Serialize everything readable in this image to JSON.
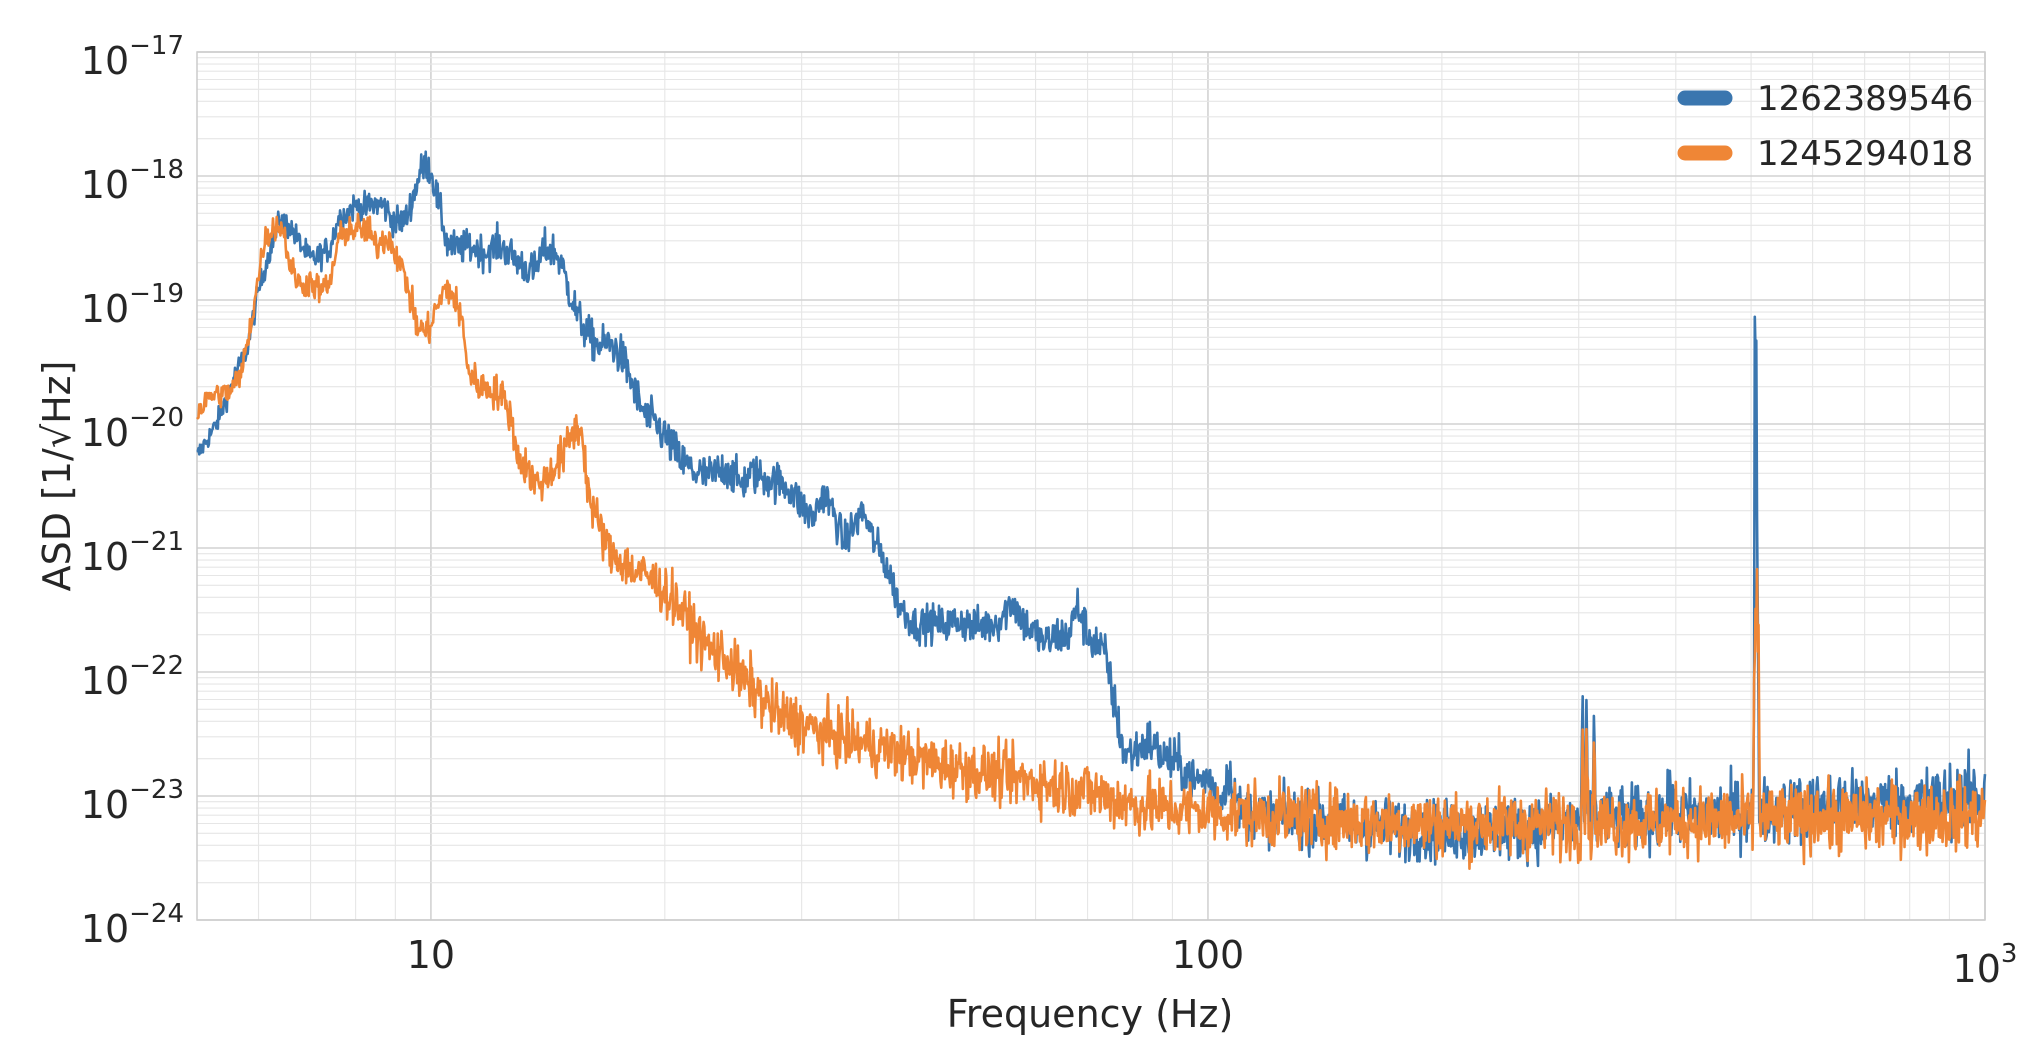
{
  "chart_data": {
    "type": "line",
    "title": "",
    "xlabel": "Frequency (Hz)",
    "ylabel": "ASD  [1/√Hz]",
    "xscale": "log",
    "yscale": "log",
    "xlim": [
      5,
      1000
    ],
    "ylim": [
      1e-24,
      1e-17
    ],
    "grid": true,
    "legend_position": "top-right",
    "x_ticks": [
      {
        "value": 10,
        "base": "10",
        "exp": ""
      },
      {
        "value": 100,
        "base": "100",
        "exp": ""
      },
      {
        "value": 1000,
        "base": "10",
        "exp": "3"
      }
    ],
    "y_ticks": [
      {
        "value": 1e-17,
        "base": "10",
        "exp": "−17"
      },
      {
        "value": 1e-18,
        "base": "10",
        "exp": "−18"
      },
      {
        "value": 1e-19,
        "base": "10",
        "exp": "−19"
      },
      {
        "value": 1e-20,
        "base": "10",
        "exp": "−20"
      },
      {
        "value": 1e-21,
        "base": "10",
        "exp": "−21"
      },
      {
        "value": 1e-22,
        "base": "10",
        "exp": "−22"
      },
      {
        "value": 1e-23,
        "base": "10",
        "exp": "−23"
      },
      {
        "value": 1e-24,
        "base": "10",
        "exp": "−24"
      }
    ],
    "series": [
      {
        "name": "1262389546",
        "color": "#3a76af",
        "noise": [
          [
            5,
            0.06
          ],
          [
            12,
            0.1
          ],
          [
            20,
            0.12
          ],
          [
            40,
            0.1
          ],
          [
            80,
            0.13
          ],
          [
            105,
            0.14
          ],
          [
            150,
            0.17
          ],
          [
            1000,
            0.2
          ]
        ],
        "points": [
          [
            5,
            5.5e-21
          ],
          [
            5.3,
            1e-20
          ],
          [
            5.6,
            2.5e-20
          ],
          [
            5.8,
            4e-20
          ],
          [
            6.0,
            1.2e-19
          ],
          [
            6.2,
            2.5e-19
          ],
          [
            6.4,
            4.5e-19
          ],
          [
            6.6,
            3.8e-19
          ],
          [
            6.8,
            2.8e-19
          ],
          [
            7.0,
            2.1e-19
          ],
          [
            7.2,
            2.3e-19
          ],
          [
            7.4,
            2.6e-19
          ],
          [
            7.6,
            4.5e-19
          ],
          [
            7.8,
            5e-19
          ],
          [
            8.0,
            5.8e-19
          ],
          [
            8.2,
            5.4e-19
          ],
          [
            8.4,
            5.9e-19
          ],
          [
            8.7,
            5.8e-19
          ],
          [
            8.9,
            4.5e-19
          ],
          [
            9.1,
            4.2e-19
          ],
          [
            9.3,
            4.6e-19
          ],
          [
            9.5,
            7e-19
          ],
          [
            9.7,
            1.1e-18
          ],
          [
            9.85,
            1.25e-18
          ],
          [
            10.0,
            1.1e-18
          ],
          [
            10.2,
            6.5e-19
          ],
          [
            10.5,
            2.8e-19
          ],
          [
            10.8,
            2.6e-19
          ],
          [
            11.2,
            2.7e-19
          ],
          [
            11.8,
            2.4e-19
          ],
          [
            12.2,
            2.8e-19
          ],
          [
            12.5,
            2.5e-19
          ],
          [
            13.0,
            2e-19
          ],
          [
            13.3,
            1.8e-19
          ],
          [
            13.6,
            1.7e-19
          ],
          [
            14.0,
            2.6e-19
          ],
          [
            14.4,
            2.5e-19
          ],
          [
            14.7,
            2e-19
          ],
          [
            15.0,
            1.3e-19
          ],
          [
            15.5,
            7e-20
          ],
          [
            16.0,
            5e-20
          ],
          [
            16.5,
            4.2e-20
          ],
          [
            17.0,
            4.5e-20
          ],
          [
            17.6,
            3.5e-20
          ],
          [
            18.0,
            2.5e-20
          ],
          [
            18.5,
            1.5e-20
          ],
          [
            19.0,
            1.1e-20
          ],
          [
            19.5,
            1e-20
          ],
          [
            20.0,
            8e-21
          ],
          [
            21.0,
            5e-21
          ],
          [
            22.0,
            4e-21
          ],
          [
            23.0,
            3.8e-21
          ],
          [
            24.0,
            4.5e-21
          ],
          [
            25.0,
            3.3e-21
          ],
          [
            26.0,
            4e-21
          ],
          [
            27.0,
            3.6e-21
          ],
          [
            28.0,
            3.4e-21
          ],
          [
            29.0,
            3e-21
          ],
          [
            30.0,
            2.2e-21
          ],
          [
            31.0,
            1.7e-21
          ],
          [
            32.0,
            2.8e-21
          ],
          [
            33.0,
            1.9e-21
          ],
          [
            34.0,
            1.1e-21
          ],
          [
            35.0,
            1.5e-21
          ],
          [
            36.0,
            2e-21
          ],
          [
            37.0,
            1.2e-21
          ],
          [
            38.0,
            9e-22
          ],
          [
            39.0,
            6e-22
          ],
          [
            40.0,
            3.5e-22
          ],
          [
            42.0,
            2.4e-22
          ],
          [
            44.0,
            2.5e-22
          ],
          [
            46.0,
            2.4e-22
          ],
          [
            48.0,
            2.6e-22
          ],
          [
            50.0,
            2.3e-22
          ],
          [
            52.0,
            2.4e-22
          ],
          [
            54.0,
            2.6e-22
          ],
          [
            56.0,
            3.8e-22
          ],
          [
            58.0,
            2.5e-22
          ],
          [
            60.0,
            2e-22
          ],
          [
            62.0,
            1.7e-22
          ],
          [
            64.0,
            2e-22
          ],
          [
            66.0,
            1.9e-22
          ],
          [
            68.0,
            3.4e-22
          ],
          [
            70.0,
            2e-22
          ],
          [
            72.0,
            1.7e-22
          ],
          [
            74.0,
            1.3e-22
          ],
          [
            76.0,
            5e-23
          ],
          [
            78.0,
            2.2e-23
          ],
          [
            80.0,
            2.2e-23
          ],
          [
            84.0,
            2.8e-23
          ],
          [
            88.0,
            2e-23
          ],
          [
            92.0,
            1.8e-23
          ],
          [
            96.0,
            1.3e-23
          ],
          [
            100.0,
            1.4e-23
          ],
          [
            104.0,
            9e-24
          ],
          [
            106.0,
            1.6e-23
          ],
          [
            110.0,
            7.5e-24
          ],
          [
            130.0,
            6.5e-24
          ],
          [
            160.0,
            5.6e-24
          ],
          [
            200.0,
            5.2e-24
          ],
          [
            260.0,
            5.5e-24
          ],
          [
            320.0,
            6.5e-24
          ],
          [
            400.0,
            7e-24
          ],
          [
            500.0,
            7.5e-24
          ],
          [
            600.0,
            8e-24
          ],
          [
            700.0,
            8.5e-24
          ],
          [
            800.0,
            9e-24
          ],
          [
            900.0,
            9.5e-24
          ],
          [
            1000.0,
            1e-23
          ]
        ],
        "peaks": [
          [
            303.5,
            6.5e-23
          ],
          [
            307.0,
            6e-23
          ],
          [
            314.0,
            5e-23
          ],
          [
            393.0,
            1.6e-23
          ],
          [
            506.0,
            3e-19
          ],
          [
            508.0,
            6e-20
          ],
          [
            510.0,
            3e-22
          ],
          [
            608.0,
            1.6e-23
          ],
          [
            650.0,
            1.4e-23
          ],
          [
            1000.0,
            1.5e-23
          ]
        ]
      },
      {
        "name": "1245294018",
        "color": "#ef8636",
        "noise": [
          [
            5,
            0.07
          ],
          [
            12,
            0.1
          ],
          [
            15,
            0.12
          ],
          [
            25,
            0.16
          ],
          [
            50,
            0.16
          ],
          [
            100,
            0.18
          ],
          [
            1000,
            0.2
          ]
        ],
        "points": [
          [
            5,
            1.2e-20
          ],
          [
            5.2,
            1.7e-20
          ],
          [
            5.5,
            1.8e-20
          ],
          [
            5.7,
            2.5e-20
          ],
          [
            5.9,
            8e-20
          ],
          [
            6.1,
            3e-19
          ],
          [
            6.3,
            4e-19
          ],
          [
            6.45,
            3.8e-19
          ],
          [
            6.6,
            1.8e-19
          ],
          [
            6.8,
            1.3e-19
          ],
          [
            7.0,
            1.4e-19
          ],
          [
            7.2,
            1.2e-19
          ],
          [
            7.4,
            1.3e-19
          ],
          [
            7.6,
            3e-19
          ],
          [
            7.8,
            3.7e-19
          ],
          [
            8.0,
            3.7e-19
          ],
          [
            8.3,
            3.7e-19
          ],
          [
            8.5,
            2.7e-19
          ],
          [
            8.8,
            3.3e-19
          ],
          [
            9.0,
            2.5e-19
          ],
          [
            9.3,
            1.4e-19
          ],
          [
            9.6,
            6e-20
          ],
          [
            9.9,
            5.5e-20
          ],
          [
            10.2,
            9e-20
          ],
          [
            10.5,
            1.3e-19
          ],
          [
            10.8,
            9e-20
          ],
          [
            11.0,
            6e-20
          ],
          [
            11.2,
            2.5e-20
          ],
          [
            11.6,
            2e-20
          ],
          [
            12.0,
            1.9e-20
          ],
          [
            12.3,
            1.7e-20
          ],
          [
            12.6,
            1.3e-20
          ],
          [
            13.0,
            5e-21
          ],
          [
            13.3,
            4.5e-21
          ],
          [
            13.6,
            3.3e-21
          ],
          [
            14.0,
            3.5e-21
          ],
          [
            14.4,
            4.5e-21
          ],
          [
            14.8,
            5.5e-21
          ],
          [
            15.2,
            8.5e-21
          ],
          [
            15.6,
            9.5e-21
          ],
          [
            16.0,
            2.5e-21
          ],
          [
            16.6,
            1.3e-21
          ],
          [
            17.0,
            9e-22
          ],
          [
            17.6,
            8e-22
          ],
          [
            18.2,
            6.5e-22
          ],
          [
            19.0,
            6e-22
          ],
          [
            20.0,
            4.5e-22
          ],
          [
            21.0,
            3.2e-22
          ],
          [
            22.0,
            2e-22
          ],
          [
            23.0,
            1.5e-22
          ],
          [
            24.0,
            1.3e-22
          ],
          [
            25.0,
            9e-23
          ],
          [
            26.0,
            7.5e-23
          ],
          [
            27.0,
            5.5e-23
          ],
          [
            28.0,
            4.5e-23
          ],
          [
            30.0,
            3.8e-23
          ],
          [
            32.0,
            3.2e-23
          ],
          [
            35.0,
            2.8e-23
          ],
          [
            38.0,
            2.4e-23
          ],
          [
            40.0,
            2.2e-23
          ],
          [
            45.0,
            1.8e-23
          ],
          [
            50.0,
            1.6e-23
          ],
          [
            60.0,
            1.3e-23
          ],
          [
            70.0,
            1.1e-23
          ],
          [
            80.0,
            8.5e-24
          ],
          [
            100.0,
            7.5e-24
          ],
          [
            130.0,
            6.8e-24
          ],
          [
            160.0,
            6.2e-24
          ],
          [
            200.0,
            6e-24
          ],
          [
            300.0,
            6e-24
          ],
          [
            400.0,
            6.2e-24
          ],
          [
            600.0,
            6.5e-24
          ],
          [
            800.0,
            6.8e-24
          ],
          [
            1000.0,
            7e-24
          ]
        ],
        "peaks": [
          [
            303.5,
            3.5e-23
          ],
          [
            307.0,
            3.5e-23
          ],
          [
            314.0,
            3e-23
          ],
          [
            505.0,
            1.5e-22
          ],
          [
            507.0,
            4e-22
          ],
          [
            509.0,
            7e-22
          ],
          [
            511.0,
            2.5e-22
          ],
          [
            608.0,
            1.2e-23
          ]
        ]
      }
    ]
  }
}
